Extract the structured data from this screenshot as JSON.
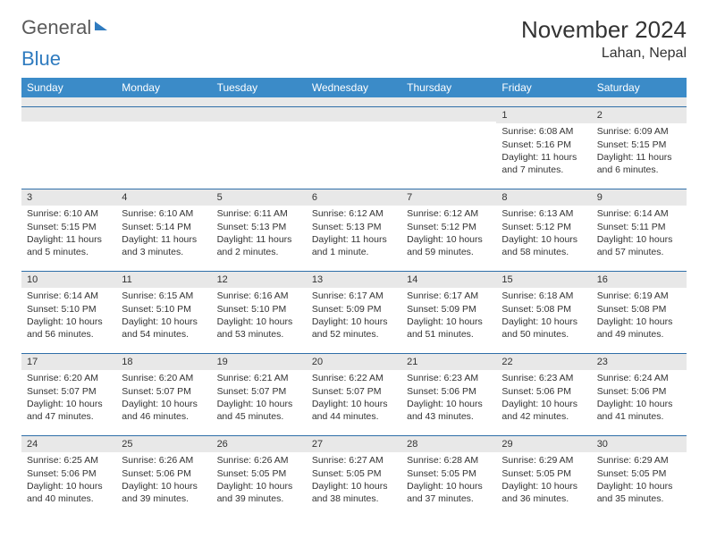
{
  "logo": {
    "word1": "General",
    "word2": "Blue"
  },
  "title": "November 2024",
  "location": "Lahan, Nepal",
  "colors": {
    "header_bg": "#3b8bc8",
    "header_text": "#ffffff",
    "daynum_bg": "#e8e8e8",
    "row_border": "#2f6fa8",
    "text": "#333333",
    "logo_gray": "#5a5a5a",
    "logo_blue": "#2f7bbf"
  },
  "weekdays": [
    "Sunday",
    "Monday",
    "Tuesday",
    "Wednesday",
    "Thursday",
    "Friday",
    "Saturday"
  ],
  "weeks": [
    [
      null,
      null,
      null,
      null,
      null,
      {
        "n": "1",
        "sr": "Sunrise: 6:08 AM",
        "ss": "Sunset: 5:16 PM",
        "dl": "Daylight: 11 hours and 7 minutes."
      },
      {
        "n": "2",
        "sr": "Sunrise: 6:09 AM",
        "ss": "Sunset: 5:15 PM",
        "dl": "Daylight: 11 hours and 6 minutes."
      }
    ],
    [
      {
        "n": "3",
        "sr": "Sunrise: 6:10 AM",
        "ss": "Sunset: 5:15 PM",
        "dl": "Daylight: 11 hours and 5 minutes."
      },
      {
        "n": "4",
        "sr": "Sunrise: 6:10 AM",
        "ss": "Sunset: 5:14 PM",
        "dl": "Daylight: 11 hours and 3 minutes."
      },
      {
        "n": "5",
        "sr": "Sunrise: 6:11 AM",
        "ss": "Sunset: 5:13 PM",
        "dl": "Daylight: 11 hours and 2 minutes."
      },
      {
        "n": "6",
        "sr": "Sunrise: 6:12 AM",
        "ss": "Sunset: 5:13 PM",
        "dl": "Daylight: 11 hours and 1 minute."
      },
      {
        "n": "7",
        "sr": "Sunrise: 6:12 AM",
        "ss": "Sunset: 5:12 PM",
        "dl": "Daylight: 10 hours and 59 minutes."
      },
      {
        "n": "8",
        "sr": "Sunrise: 6:13 AM",
        "ss": "Sunset: 5:12 PM",
        "dl": "Daylight: 10 hours and 58 minutes."
      },
      {
        "n": "9",
        "sr": "Sunrise: 6:14 AM",
        "ss": "Sunset: 5:11 PM",
        "dl": "Daylight: 10 hours and 57 minutes."
      }
    ],
    [
      {
        "n": "10",
        "sr": "Sunrise: 6:14 AM",
        "ss": "Sunset: 5:10 PM",
        "dl": "Daylight: 10 hours and 56 minutes."
      },
      {
        "n": "11",
        "sr": "Sunrise: 6:15 AM",
        "ss": "Sunset: 5:10 PM",
        "dl": "Daylight: 10 hours and 54 minutes."
      },
      {
        "n": "12",
        "sr": "Sunrise: 6:16 AM",
        "ss": "Sunset: 5:10 PM",
        "dl": "Daylight: 10 hours and 53 minutes."
      },
      {
        "n": "13",
        "sr": "Sunrise: 6:17 AM",
        "ss": "Sunset: 5:09 PM",
        "dl": "Daylight: 10 hours and 52 minutes."
      },
      {
        "n": "14",
        "sr": "Sunrise: 6:17 AM",
        "ss": "Sunset: 5:09 PM",
        "dl": "Daylight: 10 hours and 51 minutes."
      },
      {
        "n": "15",
        "sr": "Sunrise: 6:18 AM",
        "ss": "Sunset: 5:08 PM",
        "dl": "Daylight: 10 hours and 50 minutes."
      },
      {
        "n": "16",
        "sr": "Sunrise: 6:19 AM",
        "ss": "Sunset: 5:08 PM",
        "dl": "Daylight: 10 hours and 49 minutes."
      }
    ],
    [
      {
        "n": "17",
        "sr": "Sunrise: 6:20 AM",
        "ss": "Sunset: 5:07 PM",
        "dl": "Daylight: 10 hours and 47 minutes."
      },
      {
        "n": "18",
        "sr": "Sunrise: 6:20 AM",
        "ss": "Sunset: 5:07 PM",
        "dl": "Daylight: 10 hours and 46 minutes."
      },
      {
        "n": "19",
        "sr": "Sunrise: 6:21 AM",
        "ss": "Sunset: 5:07 PM",
        "dl": "Daylight: 10 hours and 45 minutes."
      },
      {
        "n": "20",
        "sr": "Sunrise: 6:22 AM",
        "ss": "Sunset: 5:07 PM",
        "dl": "Daylight: 10 hours and 44 minutes."
      },
      {
        "n": "21",
        "sr": "Sunrise: 6:23 AM",
        "ss": "Sunset: 5:06 PM",
        "dl": "Daylight: 10 hours and 43 minutes."
      },
      {
        "n": "22",
        "sr": "Sunrise: 6:23 AM",
        "ss": "Sunset: 5:06 PM",
        "dl": "Daylight: 10 hours and 42 minutes."
      },
      {
        "n": "23",
        "sr": "Sunrise: 6:24 AM",
        "ss": "Sunset: 5:06 PM",
        "dl": "Daylight: 10 hours and 41 minutes."
      }
    ],
    [
      {
        "n": "24",
        "sr": "Sunrise: 6:25 AM",
        "ss": "Sunset: 5:06 PM",
        "dl": "Daylight: 10 hours and 40 minutes."
      },
      {
        "n": "25",
        "sr": "Sunrise: 6:26 AM",
        "ss": "Sunset: 5:06 PM",
        "dl": "Daylight: 10 hours and 39 minutes."
      },
      {
        "n": "26",
        "sr": "Sunrise: 6:26 AM",
        "ss": "Sunset: 5:05 PM",
        "dl": "Daylight: 10 hours and 39 minutes."
      },
      {
        "n": "27",
        "sr": "Sunrise: 6:27 AM",
        "ss": "Sunset: 5:05 PM",
        "dl": "Daylight: 10 hours and 38 minutes."
      },
      {
        "n": "28",
        "sr": "Sunrise: 6:28 AM",
        "ss": "Sunset: 5:05 PM",
        "dl": "Daylight: 10 hours and 37 minutes."
      },
      {
        "n": "29",
        "sr": "Sunrise: 6:29 AM",
        "ss": "Sunset: 5:05 PM",
        "dl": "Daylight: 10 hours and 36 minutes."
      },
      {
        "n": "30",
        "sr": "Sunrise: 6:29 AM",
        "ss": "Sunset: 5:05 PM",
        "dl": "Daylight: 10 hours and 35 minutes."
      }
    ]
  ]
}
